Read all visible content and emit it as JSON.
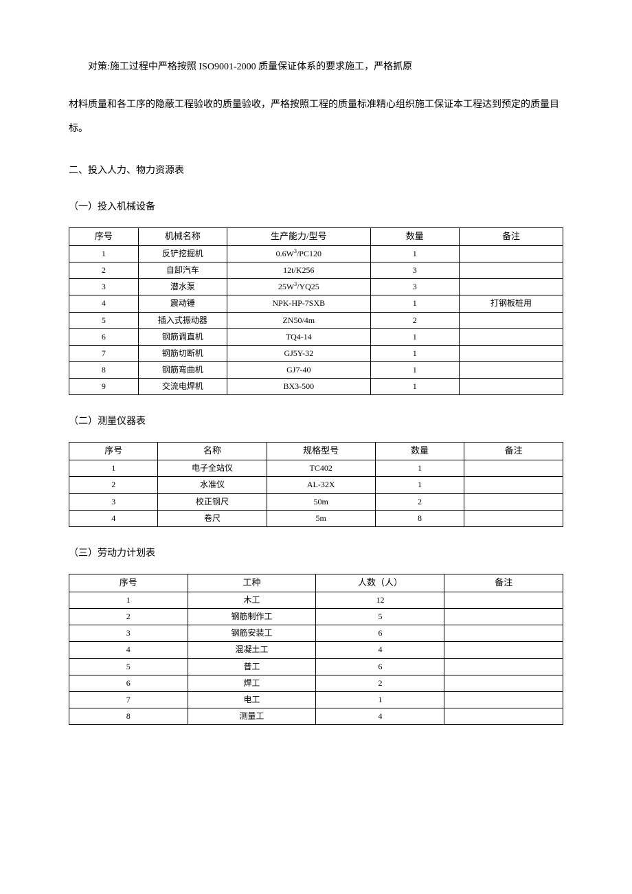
{
  "paragraph1_part1": "对策:施工过程中严格按照 ISO9001-2000 质量保证体系的要求施工，严格抓原",
  "paragraph1_part2": "材料质量和各工序的隐蔽工程验收的质量验收，严格按照工程的质量标准精心组织施工保证本工程达到预定的质量目标。",
  "section2": "二、投入人力、物力资源表",
  "subsection1": "（一）投入机械设备",
  "table1": {
    "headers": [
      "序号",
      "机械名称",
      "生产能力/型号",
      "数量",
      "备注"
    ],
    "rows": [
      [
        "1",
        "反铲挖掘机",
        "0.6W³/PC120",
        "1",
        ""
      ],
      [
        "2",
        "自卸汽车",
        "12t/K256",
        "3",
        ""
      ],
      [
        "3",
        "潜水泵",
        "25W³/YQ25",
        "3",
        ""
      ],
      [
        "4",
        "震动锤",
        "NPK-HP-7SXB",
        "1",
        "打钢板桩用"
      ],
      [
        "5",
        "插入式振动器",
        "ZN50/4m",
        "2",
        ""
      ],
      [
        "6",
        "钢筋调直机",
        "TQ4-14",
        "1",
        ""
      ],
      [
        "7",
        "钢筋切断机",
        "GJ5Y-32",
        "1",
        ""
      ],
      [
        "8",
        "钢筋弯曲机",
        "GJ7-40",
        "1",
        ""
      ],
      [
        "9",
        "交流电焊机",
        "BX3-500",
        "1",
        ""
      ]
    ]
  },
  "subsection2": "（二）测量仪器表",
  "table2": {
    "headers": [
      "序号",
      "名称",
      "规格型号",
      "数量",
      "备注"
    ],
    "rows": [
      [
        "1",
        "电子全站仪",
        "TC402",
        "1",
        ""
      ],
      [
        "2",
        "水准仪",
        "AL-32X",
        "1",
        ""
      ],
      [
        "3",
        "校正钢尺",
        "50m",
        "2",
        ""
      ],
      [
        "4",
        "卷尺",
        "5m",
        "8",
        ""
      ]
    ]
  },
  "subsection3": "（三）劳动力计划表",
  "table3": {
    "headers": [
      "序号",
      "工种",
      "人数（人）",
      "备注"
    ],
    "rows": [
      [
        "1",
        "木工",
        "12",
        ""
      ],
      [
        "2",
        "钢筋制作工",
        "5",
        ""
      ],
      [
        "3",
        "钢筋安装工",
        "6",
        ""
      ],
      [
        "4",
        "混凝土工",
        "4",
        ""
      ],
      [
        "5",
        "普工",
        "6",
        ""
      ],
      [
        "6",
        "焊工",
        "2",
        ""
      ],
      [
        "7",
        "电工",
        "1",
        ""
      ],
      [
        "8",
        "测量工",
        "4",
        ""
      ]
    ]
  },
  "col_widths": {
    "table1": [
      "14%",
      "18%",
      "29%",
      "18%",
      "21%"
    ],
    "table2": [
      "18%",
      "22%",
      "22%",
      "18%",
      "20%"
    ],
    "table3": [
      "24%",
      "26%",
      "26%",
      "24%"
    ]
  }
}
